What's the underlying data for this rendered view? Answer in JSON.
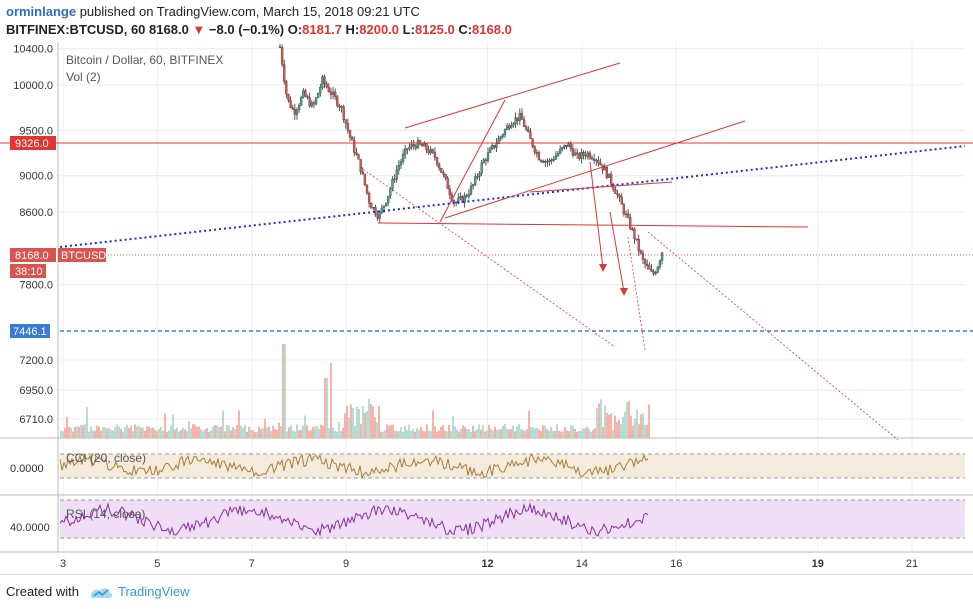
{
  "header": {
    "user": "orminlange",
    "published": "published on TradingView.com, March 15, 2018 09:21 UTC",
    "symbol": "BITFINEX:BTCUSD, 60",
    "last": "8168.0",
    "change": "−8.0 (−0.1%)",
    "o_label": "O:",
    "o_val": "8181.7",
    "h_label": "H:",
    "h_val": "8200.0",
    "l_label": "L:",
    "l_val": "8125.0",
    "c_label": "C:",
    "c_val": "8168.0"
  },
  "legend": {
    "title": "Bitcoin / Dollar, 60, BITFINEX",
    "vol": "Vol (2)",
    "cci": "CCI (20, close)",
    "rsi": "RSI (14, close)"
  },
  "price_labels": {
    "level_9326": "9326.0",
    "current": "8168.0",
    "ticker": "BTCUSD",
    "countdown": "38:10",
    "level_7446": "7446.1"
  },
  "footer": {
    "created": "Created with",
    "brand": "TradingView"
  },
  "colors": {
    "up": "#4a9d8f",
    "down": "#d9534f",
    "red_line": "#e03535",
    "blue_dotted": "#1d2bd6",
    "blue_dashed": "#3a7bd5",
    "cci_line": "#a57d38",
    "rsi_line": "#8a2ea0"
  },
  "chart_data": {
    "type": "candlestick",
    "title": "Bitcoin / Dollar, 60, BITFINEX",
    "symbol": "BITFINEX:BTCUSD",
    "x_ticks": [
      "3",
      "5",
      "7",
      "9",
      "12",
      "14",
      "16",
      "19",
      "21"
    ],
    "y_ticks": [
      6710,
      6950,
      7200,
      7800,
      8600,
      9000,
      9500,
      10000,
      10400
    ],
    "ohlc_last": {
      "open": 8181.7,
      "high": 8200.0,
      "low": 8125.0,
      "close": 8168.0
    },
    "approx_close_path": [
      [
        7.6,
        10420
      ],
      [
        7.75,
        9850
      ],
      [
        7.9,
        9700
      ],
      [
        8.1,
        9900
      ],
      [
        8.3,
        9750
      ],
      [
        8.5,
        10050
      ],
      [
        8.7,
        9900
      ],
      [
        8.9,
        9750
      ],
      [
        9.1,
        9400
      ],
      [
        9.3,
        9100
      ],
      [
        9.5,
        8700
      ],
      [
        9.7,
        8550
      ],
      [
        9.9,
        8800
      ],
      [
        10.1,
        9100
      ],
      [
        10.3,
        9300
      ],
      [
        10.5,
        9350
      ],
      [
        10.7,
        9300
      ],
      [
        10.9,
        9200
      ],
      [
        11.1,
        8950
      ],
      [
        11.3,
        8700
      ],
      [
        11.5,
        8750
      ],
      [
        11.7,
        8900
      ],
      [
        11.9,
        9150
      ],
      [
        12.1,
        9300
      ],
      [
        12.3,
        9450
      ],
      [
        12.5,
        9600
      ],
      [
        12.7,
        9650
      ],
      [
        12.9,
        9400
      ],
      [
        13.1,
        9200
      ],
      [
        13.3,
        9150
      ],
      [
        13.5,
        9250
      ],
      [
        13.7,
        9350
      ],
      [
        13.9,
        9200
      ],
      [
        14.1,
        9250
      ],
      [
        14.3,
        9200
      ],
      [
        14.5,
        9050
      ],
      [
        14.7,
        8850
      ],
      [
        14.9,
        8600
      ],
      [
        15.1,
        8350
      ],
      [
        15.3,
        8050
      ],
      [
        15.5,
        7900
      ],
      [
        15.6,
        8000
      ],
      [
        15.7,
        8168
      ]
    ],
    "levels": [
      9326.0,
      7446.1
    ],
    "indicators": [
      "Vol (2)",
      "CCI (20, close)",
      "RSI (14, close)"
    ],
    "cci_tick": "0.0000",
    "rsi_tick": "40.0000"
  }
}
